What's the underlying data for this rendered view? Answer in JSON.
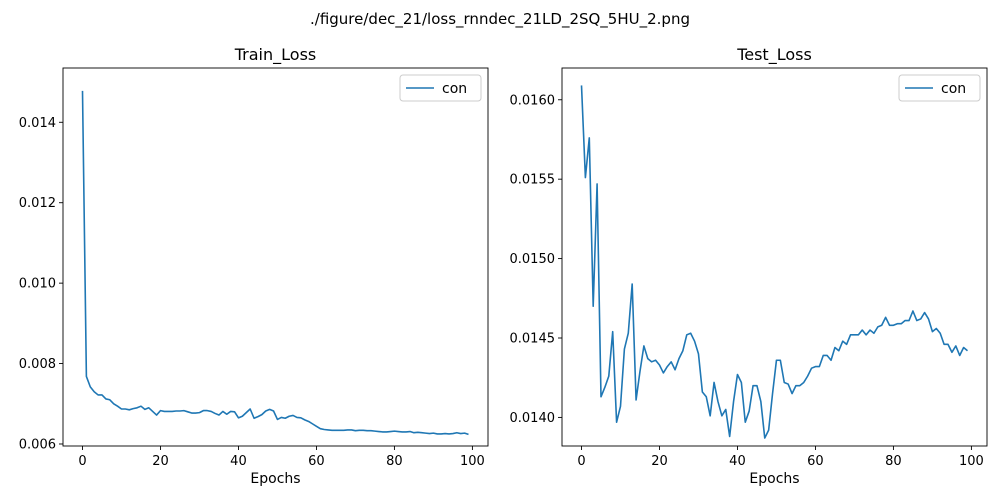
{
  "figure_title": "./figure/dec_21/loss_rnndec_21LD_2SQ_5HU_2.png",
  "colors": {
    "series": "#1f77b4",
    "axes": "#000000",
    "legend_border": "#cccccc"
  },
  "chart_data": [
    {
      "type": "line",
      "title": "Train_Loss",
      "xlabel": "Epochs",
      "ylabel": "",
      "xlim": [
        -5,
        104
      ],
      "ylim": [
        0.00595,
        0.01535
      ],
      "grid": false,
      "legend_position": "top-right",
      "xticks": [
        0,
        20,
        40,
        60,
        80,
        100
      ],
      "yticks": [
        0.006,
        0.008,
        0.01,
        0.012,
        0.014
      ],
      "ytick_labels": [
        "0.006",
        "0.008",
        "0.010",
        "0.012",
        "0.014"
      ],
      "series": [
        {
          "name": "con",
          "x": [
            0,
            1,
            2,
            3,
            4,
            5,
            6,
            7,
            8,
            9,
            10,
            11,
            12,
            13,
            14,
            15,
            16,
            17,
            18,
            19,
            20,
            21,
            22,
            23,
            24,
            25,
            26,
            27,
            28,
            29,
            30,
            31,
            32,
            33,
            34,
            35,
            36,
            37,
            38,
            39,
            40,
            41,
            42,
            43,
            44,
            45,
            46,
            47,
            48,
            49,
            50,
            51,
            52,
            53,
            54,
            55,
            56,
            57,
            58,
            59,
            60,
            61,
            62,
            63,
            64,
            65,
            66,
            67,
            68,
            69,
            70,
            71,
            72,
            73,
            74,
            75,
            76,
            77,
            78,
            79,
            80,
            81,
            82,
            83,
            84,
            85,
            86,
            87,
            88,
            89,
            90,
            91,
            92,
            93,
            94,
            95,
            96,
            97,
            98,
            99
          ],
          "y": [
            0.01478,
            0.00768,
            0.00742,
            0.0073,
            0.00722,
            0.00722,
            0.00712,
            0.0071,
            0.007,
            0.00694,
            0.00687,
            0.00687,
            0.00685,
            0.00688,
            0.0069,
            0.00694,
            0.00686,
            0.0069,
            0.00681,
            0.00672,
            0.00683,
            0.00681,
            0.00681,
            0.00681,
            0.00682,
            0.00682,
            0.00683,
            0.0068,
            0.00677,
            0.00677,
            0.00678,
            0.00683,
            0.00683,
            0.00681,
            0.00676,
            0.00672,
            0.00681,
            0.00674,
            0.00681,
            0.0068,
            0.00665,
            0.00669,
            0.00678,
            0.00687,
            0.00664,
            0.00668,
            0.00673,
            0.00682,
            0.00686,
            0.00682,
            0.00661,
            0.00666,
            0.00664,
            0.00669,
            0.00671,
            0.00666,
            0.00665,
            0.0066,
            0.00656,
            0.0065,
            0.00644,
            0.00638,
            0.00636,
            0.00635,
            0.00634,
            0.00634,
            0.00634,
            0.00634,
            0.00635,
            0.00635,
            0.00633,
            0.00634,
            0.00634,
            0.00633,
            0.00633,
            0.00632,
            0.00631,
            0.0063,
            0.0063,
            0.00631,
            0.00632,
            0.00631,
            0.0063,
            0.0063,
            0.00631,
            0.00628,
            0.00629,
            0.00628,
            0.00627,
            0.00626,
            0.00627,
            0.00625,
            0.00625,
            0.00626,
            0.00625,
            0.00626,
            0.00628,
            0.00626,
            0.00627,
            0.00624
          ]
        }
      ]
    },
    {
      "type": "line",
      "title": "Test_Loss",
      "xlabel": "Epochs",
      "ylabel": "",
      "xlim": [
        -5,
        104
      ],
      "ylim": [
        0.01382,
        0.0162
      ],
      "grid": false,
      "legend_position": "top-right",
      "xticks": [
        0,
        20,
        40,
        60,
        80,
        100
      ],
      "yticks": [
        0.014,
        0.0145,
        0.015,
        0.0155,
        0.016
      ],
      "ytick_labels": [
        "0.0140",
        "0.0145",
        "0.0150",
        "0.0155",
        "0.0160"
      ],
      "series": [
        {
          "name": "con",
          "x": [
            0,
            1,
            2,
            3,
            4,
            5,
            6,
            7,
            8,
            9,
            10,
            11,
            12,
            13,
            14,
            15,
            16,
            17,
            18,
            19,
            20,
            21,
            22,
            23,
            24,
            25,
            26,
            27,
            28,
            29,
            30,
            31,
            32,
            33,
            34,
            35,
            36,
            37,
            38,
            39,
            40,
            41,
            42,
            43,
            44,
            45,
            46,
            47,
            48,
            49,
            50,
            51,
            52,
            53,
            54,
            55,
            56,
            57,
            58,
            59,
            60,
            61,
            62,
            63,
            64,
            65,
            66,
            67,
            68,
            69,
            70,
            71,
            72,
            73,
            74,
            75,
            76,
            77,
            78,
            79,
            80,
            81,
            82,
            83,
            84,
            85,
            86,
            87,
            88,
            89,
            90,
            91,
            92,
            93,
            94,
            95,
            96,
            97,
            98,
            99
          ],
          "y": [
            0.01609,
            0.01551,
            0.01576,
            0.0147,
            0.01547,
            0.01413,
            0.01419,
            0.01426,
            0.01454,
            0.01397,
            0.01407,
            0.01443,
            0.01453,
            0.01484,
            0.01411,
            0.01429,
            0.01445,
            0.01437,
            0.01435,
            0.01436,
            0.01433,
            0.01428,
            0.01432,
            0.01435,
            0.0143,
            0.01437,
            0.01442,
            0.01452,
            0.01453,
            0.01448,
            0.0144,
            0.01416,
            0.01413,
            0.01401,
            0.01422,
            0.0141,
            0.01401,
            0.01405,
            0.01388,
            0.0141,
            0.01427,
            0.01422,
            0.01397,
            0.01404,
            0.0142,
            0.0142,
            0.0141,
            0.01387,
            0.01392,
            0.01415,
            0.01436,
            0.01436,
            0.01422,
            0.01421,
            0.01415,
            0.0142,
            0.0142,
            0.01422,
            0.01426,
            0.01431,
            0.01432,
            0.01432,
            0.01439,
            0.01439,
            0.01436,
            0.01444,
            0.01442,
            0.01448,
            0.01446,
            0.01452,
            0.01452,
            0.01452,
            0.01455,
            0.01452,
            0.01455,
            0.01453,
            0.01457,
            0.01458,
            0.01463,
            0.01458,
            0.01458,
            0.01459,
            0.01459,
            0.01461,
            0.01461,
            0.01467,
            0.01461,
            0.01462,
            0.01466,
            0.01462,
            0.01454,
            0.01456,
            0.01453,
            0.01446,
            0.01446,
            0.01441,
            0.01445,
            0.01439,
            0.01444,
            0.01442
          ]
        }
      ]
    }
  ]
}
